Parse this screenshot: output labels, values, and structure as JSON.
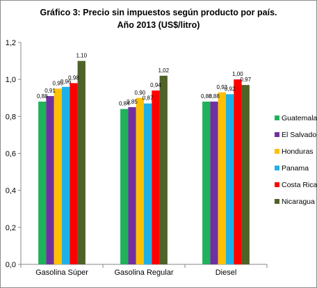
{
  "chart_data": {
    "type": "bar",
    "title_line1": "Gráfico 3:  Precio sin impuestos según producto por país.",
    "title_line2": "Año 2013 (US$/litro)",
    "xlabel": "",
    "ylabel": "",
    "ylim": [
      0,
      1.2
    ],
    "yticks": [
      "0,0",
      "0,2",
      "0,4",
      "0,6",
      "0,8",
      "1,0",
      "1,2"
    ],
    "ytick_values": [
      0,
      0.2,
      0.4,
      0.6,
      0.8,
      1.0,
      1.2
    ],
    "grid": false,
    "legend_position": "right",
    "categories": [
      "Gasolina Súper",
      "Gasolina Regular",
      "Diesel"
    ],
    "series": [
      {
        "name": "Guatemala",
        "color": "#1fb25a",
        "values": [
          0.88,
          0.84,
          0.88
        ],
        "labels": [
          "0,88",
          "0,84",
          "0,88"
        ]
      },
      {
        "name": "El Salvador",
        "color": "#7030a0",
        "values": [
          0.91,
          0.85,
          0.88
        ],
        "labels": [
          "0,91",
          "0,85",
          "0,88"
        ]
      },
      {
        "name": "Honduras",
        "color": "#ffc000",
        "values": [
          0.95,
          0.9,
          0.93
        ],
        "labels": [
          "0,95",
          "0,90",
          "0,93"
        ]
      },
      {
        "name": "Panama",
        "color": "#20b0e8",
        "values": [
          0.96,
          0.87,
          0.92
        ],
        "labels": [
          "0,96",
          "0,87",
          "0,92"
        ]
      },
      {
        "name": "Costa Rica",
        "color": "#ff0000",
        "values": [
          0.98,
          0.94,
          1.0
        ],
        "labels": [
          "0,98",
          "0,94",
          "1,00"
        ]
      },
      {
        "name": "Nicaragua",
        "color": "#4f6228",
        "values": [
          1.1,
          1.02,
          0.97
        ],
        "labels": [
          "1,10",
          "1,02",
          "0,97"
        ]
      }
    ]
  }
}
